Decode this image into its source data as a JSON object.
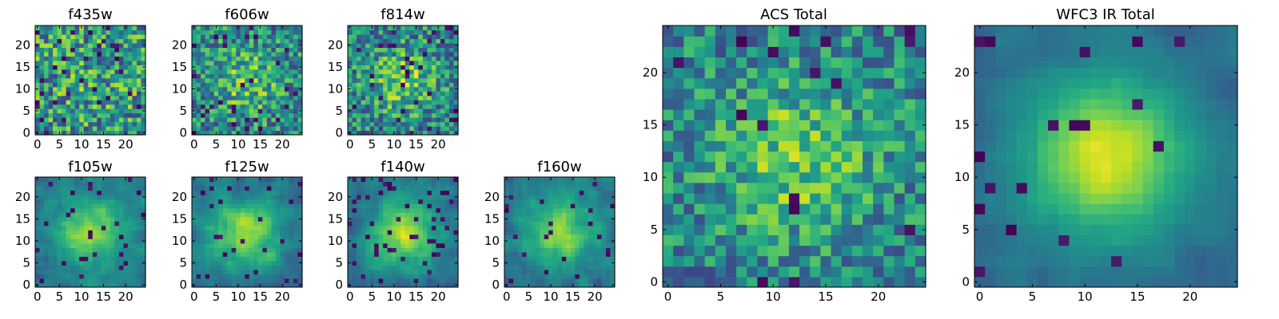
{
  "chart_data": {
    "type": "heatmap",
    "colormap": "viridis",
    "panels": [
      {
        "key": "f435w",
        "title": "f435w",
        "size": 25,
        "x_ticks": [
          0,
          5,
          10,
          15,
          20
        ],
        "y_ticks": [
          0,
          5,
          10,
          15,
          20
        ],
        "xlim": [
          0,
          24
        ],
        "ylim": [
          0,
          24
        ],
        "signal": 0.05,
        "noise": 0.35,
        "grain": 1,
        "dark_fraction": 0.06,
        "seed": 11
      },
      {
        "key": "f606w",
        "title": "f606w",
        "size": 25,
        "x_ticks": [
          0,
          5,
          10,
          15,
          20
        ],
        "y_ticks": [
          0,
          5,
          10,
          15,
          20
        ],
        "xlim": [
          0,
          24
        ],
        "ylim": [
          0,
          24
        ],
        "signal": 0.25,
        "noise": 0.3,
        "grain": 1,
        "dark_fraction": 0.04,
        "seed": 23
      },
      {
        "key": "f814w",
        "title": "f814w",
        "size": 25,
        "x_ticks": [
          0,
          5,
          10,
          15,
          20
        ],
        "y_ticks": [
          0,
          5,
          10,
          15,
          20
        ],
        "xlim": [
          0,
          24
        ],
        "ylim": [
          0,
          24
        ],
        "signal": 0.3,
        "noise": 0.3,
        "grain": 1,
        "dark_fraction": 0.05,
        "seed": 37
      },
      {
        "key": "f105w",
        "title": "f105w",
        "size": 25,
        "x_ticks": [
          0,
          5,
          10,
          15,
          20
        ],
        "y_ticks": [
          0,
          5,
          10,
          15,
          20
        ],
        "xlim": [
          0,
          24
        ],
        "ylim": [
          0,
          24
        ],
        "signal": 0.45,
        "noise": 0.25,
        "grain": 2,
        "dark_fraction": 0.05,
        "seed": 41
      },
      {
        "key": "f125w",
        "title": "f125w",
        "size": 25,
        "x_ticks": [
          0,
          5,
          10,
          15,
          20
        ],
        "y_ticks": [
          0,
          5,
          10,
          15,
          20
        ],
        "xlim": [
          0,
          24
        ],
        "ylim": [
          0,
          24
        ],
        "signal": 0.45,
        "noise": 0.25,
        "grain": 2,
        "dark_fraction": 0.05,
        "seed": 53
      },
      {
        "key": "f140w",
        "title": "f140w",
        "size": 25,
        "x_ticks": [
          0,
          5,
          10,
          15,
          20
        ],
        "y_ticks": [
          0,
          5,
          10,
          15,
          20
        ],
        "xlim": [
          0,
          24
        ],
        "ylim": [
          0,
          24
        ],
        "signal": 0.5,
        "noise": 0.25,
        "grain": 2,
        "dark_fraction": 0.06,
        "seed": 67
      },
      {
        "key": "f160w",
        "title": "f160w",
        "size": 25,
        "x_ticks": [
          0,
          5,
          10,
          15,
          20
        ],
        "y_ticks": [
          0,
          5,
          10,
          15,
          20
        ],
        "xlim": [
          0,
          24
        ],
        "ylim": [
          0,
          24
        ],
        "signal": 0.45,
        "noise": 0.25,
        "grain": 2,
        "dark_fraction": 0.05,
        "seed": 79
      },
      {
        "key": "acs_total",
        "title": "ACS Total",
        "size": 25,
        "x_ticks": [
          0,
          5,
          10,
          15,
          20
        ],
        "y_ticks": [
          0,
          5,
          10,
          15,
          20
        ],
        "xlim": [
          0,
          24
        ],
        "ylim": [
          0,
          24
        ],
        "signal": 0.3,
        "noise": 0.25,
        "grain": 1,
        "dark_fraction": 0.03,
        "seed": 97
      },
      {
        "key": "wfc3_ir_total",
        "title": "WFC3 IR Total",
        "size": 25,
        "x_ticks": [
          0,
          5,
          10,
          15,
          20
        ],
        "y_ticks": [
          0,
          5,
          10,
          15,
          20
        ],
        "xlim": [
          0,
          24
        ],
        "ylim": [
          0,
          24
        ],
        "signal": 0.6,
        "noise": 0.12,
        "grain": 2,
        "dark_fraction": 0.04,
        "seed": 113
      }
    ]
  }
}
